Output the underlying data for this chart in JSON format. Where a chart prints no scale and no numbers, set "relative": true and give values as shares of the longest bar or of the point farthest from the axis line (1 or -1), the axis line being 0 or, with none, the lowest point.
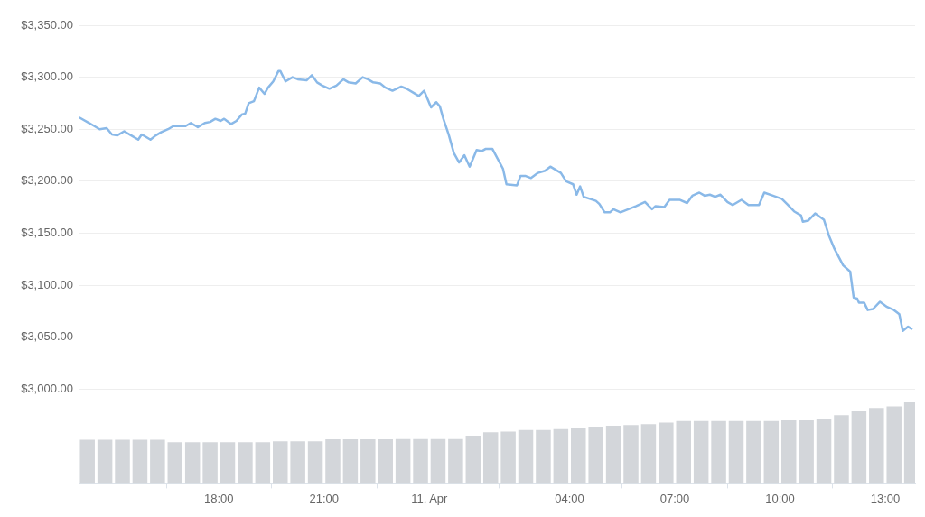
{
  "chart_data": [
    {
      "type": "line",
      "xlim": [
        "--04-10T14:00",
        "--04-11T13:51"
      ],
      "xticks": [
        {
          "value": "--04-10T18:00",
          "label": null
        },
        {
          "value": "--04-10T21:00",
          "label": null
        },
        {
          "value": "--04-11T00:00",
          "label": null
        },
        {
          "value": "--04-11T04:00",
          "label": null
        },
        {
          "value": "--04-11T07:00",
          "label": null
        },
        {
          "value": "--04-11T10:00",
          "label": null
        },
        {
          "value": "--04-11T13:00",
          "label": null
        }
      ],
      "ylim": [
        3000,
        3350
      ],
      "yticks": [
        {
          "value": 3000,
          "label": "$3,000.00"
        },
        {
          "value": 3050,
          "label": "$3,050.00"
        },
        {
          "value": 3100,
          "label": "$3,100.00"
        },
        {
          "value": 3150,
          "label": "$3,150.00"
        },
        {
          "value": 3200,
          "label": "$3,200.00"
        },
        {
          "value": 3250,
          "label": "$3,250.00"
        },
        {
          "value": 3300,
          "label": "$3,300.00"
        },
        {
          "value": 3350,
          "label": "$3,350.00"
        }
      ],
      "grid": "y",
      "tick_labels": "y",
      "series": [
        {
          "color": "#8ab9e8",
          "x": [
            "--04-10T14:02",
            "--04-10T14:18",
            "--04-10T14:36",
            "--04-10T14:48",
            "--04-10T14:57",
            "--04-10T15:06",
            "--04-10T15:18",
            "--04-10T15:30",
            "--04-10T15:42",
            "--04-10T15:48",
            "--04-10T16:03",
            "--04-10T16:12",
            "--04-10T16:21",
            "--04-10T16:33",
            "--04-10T16:42",
            "--04-10T17:03",
            "--04-10T17:12",
            "--04-10T17:24",
            "--04-10T17:36",
            "--04-10T17:45",
            "--04-10T17:54",
            "--04-10T18:03",
            "--04-10T18:09",
            "--04-10T18:21",
            "--04-10T18:30",
            "--04-10T18:39",
            "--04-10T18:45",
            "--04-10T18:51",
            "--04-10T19:00",
            "--04-10T19:09",
            "--04-10T19:18",
            "--04-10T19:24",
            "--04-10T19:33",
            "--04-10T19:42",
            "--04-10T19:45",
            "--04-10T19:54",
            "--04-10T20:06",
            "--04-10T20:15",
            "--04-10T20:30",
            "--04-10T20:39",
            "--04-10T20:48",
            "--04-10T20:57",
            "--04-10T21:09",
            "--04-10T21:21",
            "--04-10T21:33",
            "--04-10T21:42",
            "--04-10T21:54",
            "--04-10T22:06",
            "--04-10T22:15",
            "--04-10T22:24",
            "--04-10T22:36",
            "--04-10T22:45",
            "--04-10T22:57",
            "--04-10T23:12",
            "--04-10T23:21",
            "--04-10T23:33",
            "--04-10T23:42",
            "--04-10T23:51",
            "--04-11T00:03",
            "--04-11T00:12",
            "--04-11T00:18",
            "--04-11T00:24",
            "--04-11T00:33",
            "--04-11T00:42",
            "--04-11T00:51",
            "--04-11T01:00",
            "--04-11T01:09",
            "--04-11T01:21",
            "--04-11T01:30",
            "--04-11T01:36",
            "--04-11T01:48",
            "--04-11T02:06",
            "--04-11T02:12",
            "--04-11T02:30",
            "--04-11T02:36",
            "--04-11T02:45",
            "--04-11T02:54",
            "--04-11T03:06",
            "--04-11T03:18",
            "--04-11T03:27",
            "--04-11T03:45",
            "--04-11T03:54",
            "--04-11T04:06",
            "--04-11T04:12",
            "--04-11T04:18",
            "--04-11T04:24",
            "--04-11T04:45",
            "--04-11T04:51",
            "--04-11T05:00",
            "--04-11T05:09",
            "--04-11T05:15",
            "--04-11T05:27",
            "--04-11T05:54",
            "--04-11T06:09",
            "--04-11T06:21",
            "--04-11T06:27",
            "--04-11T06:42",
            "--04-11T06:51",
            "--04-11T07:09",
            "--04-11T07:21",
            "--04-11T07:30",
            "--04-11T07:42",
            "--04-11T07:51",
            "--04-11T08:00",
            "--04-11T08:09",
            "--04-11T08:18",
            "--04-11T08:30",
            "--04-11T08:39",
            "--04-11T08:54",
            "--04-11T09:06",
            "--04-11T09:24",
            "--04-11T09:33",
            "--04-11T09:48",
            "--04-11T10:03",
            "--04-11T10:12",
            "--04-11T10:24",
            "--04-11T10:36",
            "--04-11T10:39",
            "--04-11T10:48",
            "--04-11T11:00",
            "--04-11T11:15",
            "--04-11T11:24",
            "--04-11T11:33",
            "--04-11T11:48",
            "--04-11T12:00",
            "--04-11T12:06",
            "--04-11T12:12",
            "--04-11T12:15",
            "--04-11T12:24",
            "--04-11T12:30",
            "--04-11T12:39",
            "--04-11T12:51",
            "--04-11T13:03",
            "--04-11T13:15",
            "--04-11T13:24",
            "--04-11T13:30",
            "--04-11T13:39",
            "--04-11T13:45"
          ],
          "values": [
            3261,
            3256,
            3250,
            3251,
            3245,
            3244,
            3248,
            3244,
            3240,
            3245,
            3240,
            3244,
            3247,
            3250,
            3253,
            3253,
            3256,
            3252,
            3256,
            3257,
            3260,
            3258,
            3260,
            3255,
            3258,
            3264,
            3265,
            3275,
            3277,
            3290,
            3284,
            3290,
            3296,
            3306,
            3306,
            3296,
            3300,
            3298,
            3297,
            3302,
            3295,
            3292,
            3289,
            3292,
            3298,
            3295,
            3294,
            3300,
            3298,
            3295,
            3294,
            3290,
            3287,
            3291,
            3289,
            3285,
            3282,
            3287,
            3271,
            3276,
            3272,
            3260,
            3245,
            3227,
            3218,
            3225,
            3214,
            3230,
            3229,
            3231,
            3231,
            3212,
            3197,
            3196,
            3205,
            3205,
            3203,
            3208,
            3210,
            3214,
            3208,
            3200,
            3197,
            3187,
            3195,
            3185,
            3181,
            3178,
            3170,
            3170,
            3173,
            3170,
            3176,
            3180,
            3173,
            3176,
            3175,
            3182,
            3182,
            3179,
            3186,
            3189,
            3186,
            3187,
            3185,
            3187,
            3180,
            3177,
            3182,
            3177,
            3177,
            3189,
            3186,
            3183,
            3178,
            3171,
            3167,
            3161,
            3162,
            3169,
            3163,
            3147,
            3135,
            3119,
            3113,
            3088,
            3087,
            3083,
            3083,
            3076,
            3077,
            3084,
            3079,
            3076,
            3072,
            3056,
            3060,
            3058
          ]
        }
      ]
    },
    {
      "type": "bar",
      "relative": true,
      "xlim": [
        "--04-10T14:00",
        "--04-11T13:51"
      ],
      "xticks": [
        {
          "value": "--04-10T18:00",
          "label": "18:00"
        },
        {
          "value": "--04-10T21:00",
          "label": "21:00"
        },
        {
          "value": "--04-11T00:00",
          "label": "11. Apr"
        },
        {
          "value": "--04-11T04:00",
          "label": "04:00"
        },
        {
          "value": "--04-11T07:00",
          "label": "07:00"
        },
        {
          "value": "--04-11T10:00",
          "label": "10:00"
        },
        {
          "value": "--04-11T13:00",
          "label": "13:00"
        }
      ],
      "grid": false,
      "tick_labels": "x",
      "color": "#d3d6da",
      "x": [
        "--04-10T14:15",
        "--04-10T14:45",
        "--04-10T15:15",
        "--04-10T15:45",
        "--04-10T16:15",
        "--04-10T16:45",
        "--04-10T17:15",
        "--04-10T17:45",
        "--04-10T18:15",
        "--04-10T18:45",
        "--04-10T19:15",
        "--04-10T19:45",
        "--04-10T20:15",
        "--04-10T20:45",
        "--04-10T21:15",
        "--04-10T21:45",
        "--04-10T22:15",
        "--04-10T22:45",
        "--04-10T23:15",
        "--04-10T23:45",
        "--04-11T00:15",
        "--04-11T00:45",
        "--04-11T01:15",
        "--04-11T01:45",
        "--04-11T02:15",
        "--04-11T02:45",
        "--04-11T03:15",
        "--04-11T03:45",
        "--04-11T04:15",
        "--04-11T04:45",
        "--04-11T05:15",
        "--04-11T05:45",
        "--04-11T06:15",
        "--04-11T06:45",
        "--04-11T07:15",
        "--04-11T07:45",
        "--04-11T08:15",
        "--04-11T08:45",
        "--04-11T09:15",
        "--04-11T09:45",
        "--04-11T10:15",
        "--04-11T10:45",
        "--04-11T11:15",
        "--04-11T11:45",
        "--04-11T12:15",
        "--04-11T12:45",
        "--04-11T13:15",
        "--04-11T13:45"
      ],
      "values": [
        0.53,
        0.53,
        0.53,
        0.53,
        0.53,
        0.5,
        0.5,
        0.5,
        0.5,
        0.5,
        0.5,
        0.51,
        0.51,
        0.51,
        0.54,
        0.54,
        0.54,
        0.54,
        0.55,
        0.55,
        0.55,
        0.55,
        0.58,
        0.62,
        0.63,
        0.65,
        0.65,
        0.67,
        0.68,
        0.69,
        0.7,
        0.71,
        0.72,
        0.74,
        0.76,
        0.76,
        0.76,
        0.76,
        0.76,
        0.76,
        0.77,
        0.78,
        0.79,
        0.83,
        0.88,
        0.92,
        0.94,
        1
      ]
    }
  ]
}
